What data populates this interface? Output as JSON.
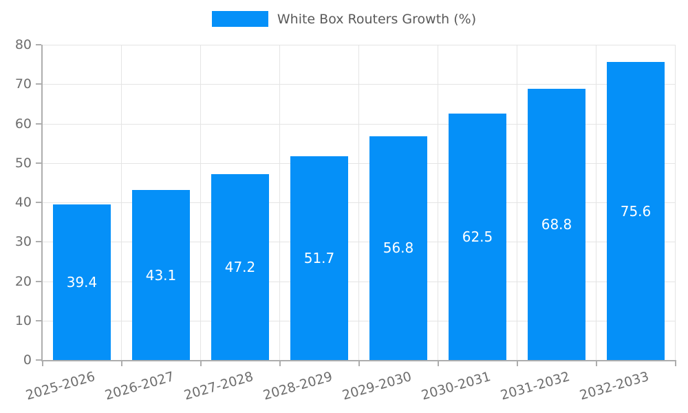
{
  "chart_data": {
    "type": "bar",
    "legend": "White Box Routers Growth (%)",
    "legend_position": "top-center",
    "categories": [
      "2025-2026",
      "2026-2027",
      "2027-2028",
      "2028-2029",
      "2029-2030",
      "2030-2031",
      "2031-2032",
      "2032-2033"
    ],
    "values": [
      39.4,
      43.1,
      47.2,
      51.7,
      56.8,
      62.5,
      68.8,
      75.6
    ],
    "ylim": [
      0,
      80
    ],
    "yticks": [
      0,
      10,
      20,
      30,
      40,
      50,
      60,
      70,
      80
    ],
    "grid": "horizontal and vertical light gray gridlines",
    "bar_color": "#0590f8",
    "bar_value_label_color": "#ffffff",
    "axis_text_color": "#6e6e6e",
    "xlabel": "",
    "ylabel": ""
  }
}
